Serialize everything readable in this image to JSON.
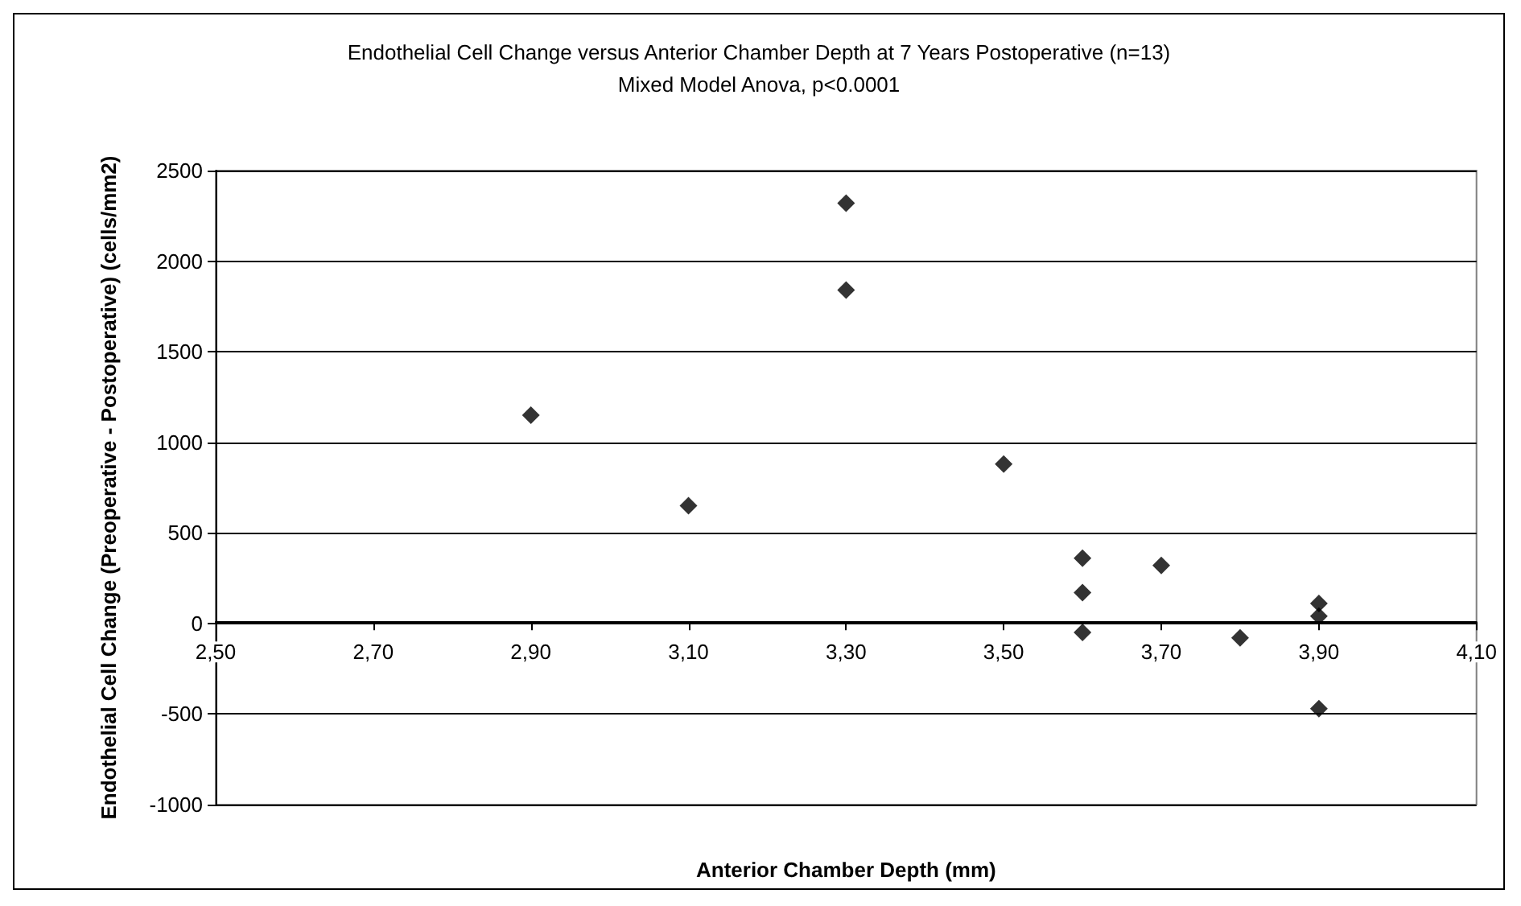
{
  "chart_data": {
    "type": "scatter",
    "title": "Endothelial Cell Change versus Anterior Chamber Depth at 7 Years Postoperative (n=13)",
    "subtitle": "Mixed Model Anova, p<0.0001",
    "xlabel": "Anterior Chamber Depth (mm)",
    "ylabel": "Endothelial Cell Change (Preoperative - Postoperative) (cells/mm2)",
    "x": [
      2.9,
      3.1,
      3.3,
      3.3,
      3.5,
      3.6,
      3.6,
      3.6,
      3.7,
      3.8,
      3.9,
      3.9,
      3.9
    ],
    "series": [
      {
        "color": "#000000",
        "values": [
          1150,
          650,
          2320,
          1840,
          880,
          360,
          170,
          -50,
          320,
          -80,
          110,
          40,
          -470
        ]
      }
    ],
    "xlim": [
      2.5,
      4.1
    ],
    "xticks": [
      {
        "value": 2.5,
        "label": "2,50"
      },
      {
        "value": 2.7,
        "label": "2,70"
      },
      {
        "value": 2.9,
        "label": "2,90"
      },
      {
        "value": 3.1,
        "label": "3,10"
      },
      {
        "value": 3.3,
        "label": "3,30"
      },
      {
        "value": 3.5,
        "label": "3,50"
      },
      {
        "value": 3.7,
        "label": "3,70"
      },
      {
        "value": 3.9,
        "label": "3,90"
      },
      {
        "value": 4.1,
        "label": "4,10"
      }
    ],
    "ylim": [
      -1000,
      2500
    ],
    "yticks": [
      -1000,
      -500,
      0,
      500,
      1000,
      1500,
      2000,
      2500
    ],
    "grid": "y",
    "marker": "diamond"
  }
}
